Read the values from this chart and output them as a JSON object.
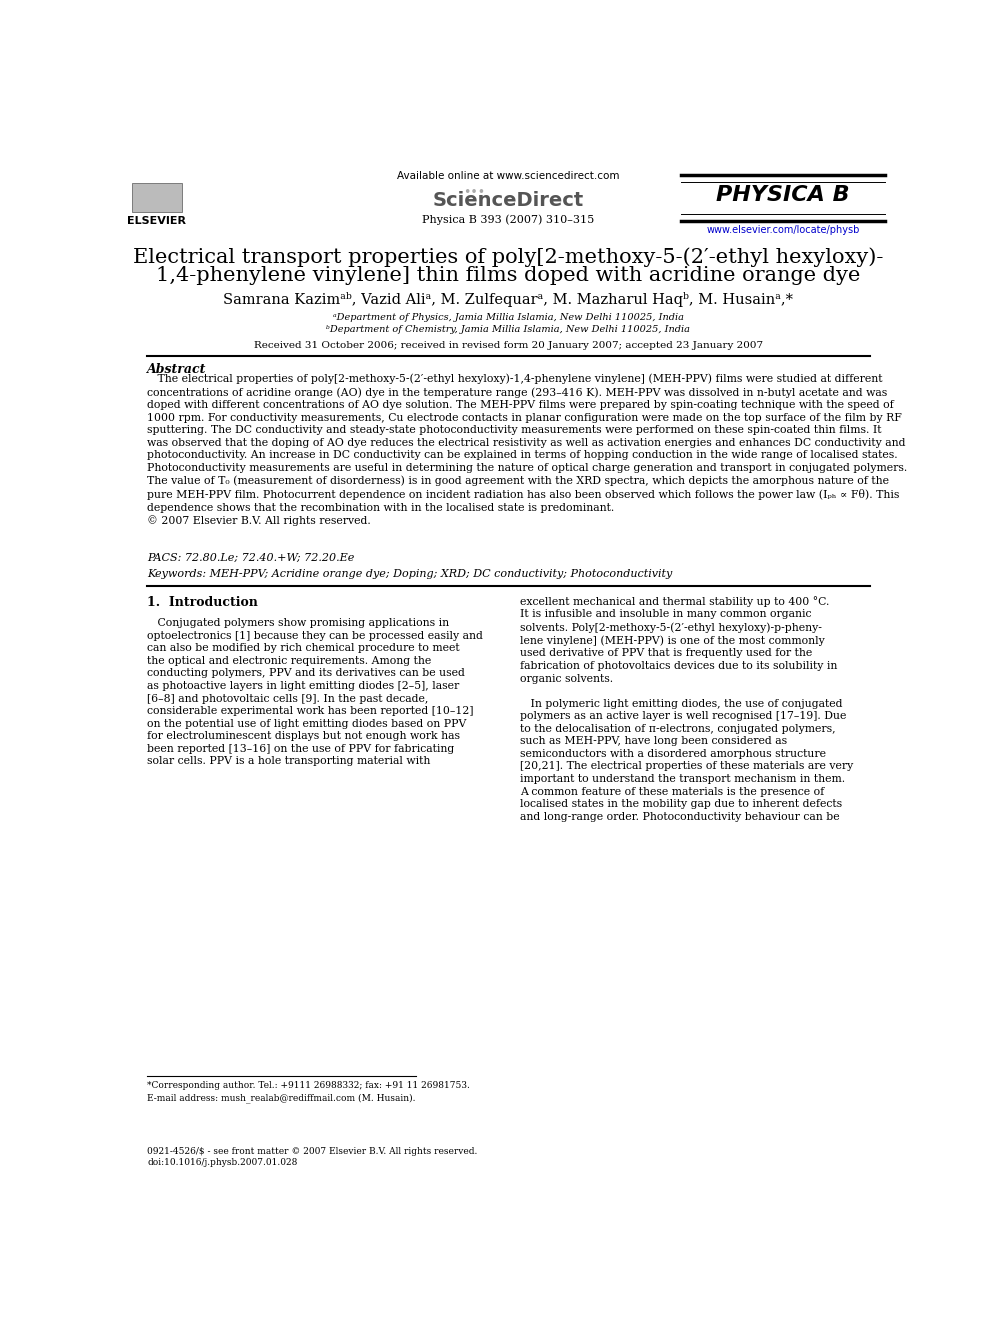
{
  "bg_color": "#ffffff",
  "header": {
    "available_online": "Available online at www.sciencedirect.com",
    "journal_info": "Physica B 393 (2007) 310–315",
    "url": "www.elsevier.com/locate/physb"
  },
  "title_line1": "Electrical transport properties of poly[2-methoxy-5-(2′-ethyl hexyloxy)-",
  "title_line2": "1,4-phenylene vinylene] thin films doped with acridine orange dye",
  "authors": "Samrana Kazimᵃᵇ, Vazid Aliᵃ, M. Zulfequarᵃ, M. Mazharul Haqᵇ, M. Husainᵃ,*",
  "affiliation_a": "ᵃDepartment of Physics, Jamia Millia Islamia, New Delhi 110025, India",
  "affiliation_b": "ᵇDepartment of Chemistry, Jamia Millia Islamia, New Delhi 110025, India",
  "received": "Received 31 October 2006; received in revised form 20 January 2007; accepted 23 January 2007",
  "abstract_title": "Abstract",
  "abstract_text": "   The electrical properties of poly[2-methoxy-5-(2′-ethyl hexyloxy)-1,4-phenylene vinylene] (MEH-PPV) films were studied at different\nconcentrations of acridine orange (AO) dye in the temperature range (293–416 K). MEH-PPV was dissolved in n-butyl acetate and was\ndoped with different concentrations of AO dye solution. The MEH-PPV films were prepared by spin-coating technique with the speed of\n1000 rpm. For conductivity measurements, Cu electrode contacts in planar configuration were made on the top surface of the film by RF\nsputtering. The DC conductivity and steady-state photoconductivity measurements were performed on these spin-coated thin films. It\nwas observed that the doping of AO dye reduces the electrical resistivity as well as activation energies and enhances DC conductivity and\nphotoconductivity. An increase in DC conductivity can be explained in terms of hopping conduction in the wide range of localised states.\nPhotoconductivity measurements are useful in determining the nature of optical charge generation and transport in conjugated polymers.\nThe value of T₀ (measurement of disorderness) is in good agreement with the XRD spectra, which depicts the amorphous nature of the\npure MEH-PPV film. Photocurrent dependence on incident radiation has also been observed which follows the power law (Iₚₕ ∝ Fθ). This\ndependence shows that the recombination with in the localised state is predominant.\n© 2007 Elsevier B.V. All rights reserved.",
  "pacs": "PACS: 72.80.Le; 72.40.+W; 72.20.Ee",
  "keywords": "Keywords: MEH-PPV; Acridine orange dye; Doping; XRD; DC conductivity; Photoconductivity",
  "section1_title": "1.  Introduction",
  "intro_col1": "   Conjugated polymers show promising applications in\noptoelectronics [1] because they can be processed easily and\ncan also be modified by rich chemical procedure to meet\nthe optical and electronic requirements. Among the\nconducting polymers, PPV and its derivatives can be used\nas photoactive layers in light emitting diodes [2–5], laser\n[6–8] and photovoltaic cells [9]. In the past decade,\nconsiderable experimental work has been reported [10–12]\non the potential use of light emitting diodes based on PPV\nfor electroluminescent displays but not enough work has\nbeen reported [13–16] on the use of PPV for fabricating\nsolar cells. PPV is a hole transporting material with",
  "intro_col2": "excellent mechanical and thermal stability up to 400 °C.\nIt is infusible and insoluble in many common organic\nsolvents. Poly[2-methoxy-5-(2′-ethyl hexyloxy)-p-pheny-\nlene vinylene] (MEH-PPV) is one of the most commonly\nused derivative of PPV that is frequently used for the\nfabrication of photovoltaics devices due to its solubility in\norganic solvents.\n\n   In polymeric light emitting diodes, the use of conjugated\npolymers as an active layer is well recognised [17–19]. Due\nto the delocalisation of π-electrons, conjugated polymers,\nsuch as MEH-PPV, have long been considered as\nsemiconductors with a disordered amorphous structure\n[20,21]. The electrical properties of these materials are very\nimportant to understand the transport mechanism in them.\nA common feature of these materials is the presence of\nlocalised states in the mobility gap due to inherent defects\nand long-range order. Photoconductivity behaviour can be",
  "footnote_line1": "*Corresponding author. Tel.: +9111 26988332; fax: +91 11 26981753.",
  "footnote_line2": "E-mail address: mush_realab@rediffmail.com (M. Husain).",
  "copyright_footer": "0921-4526/$ - see front matter © 2007 Elsevier B.V. All rights reserved.\ndoi:10.1016/j.physb.2007.01.028"
}
